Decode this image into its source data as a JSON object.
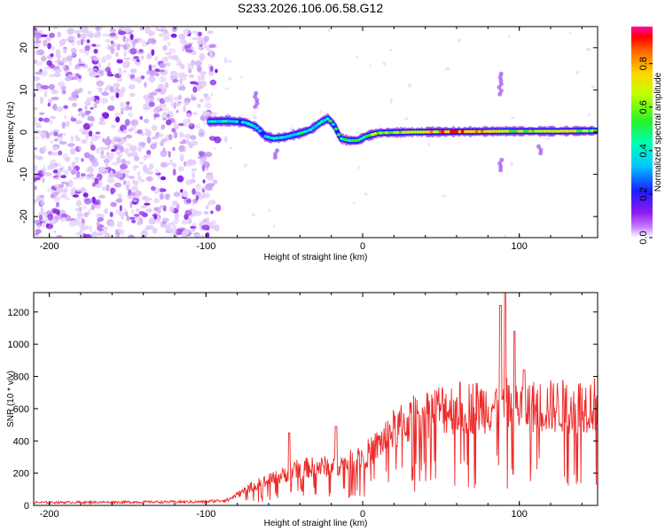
{
  "title": "S233.2026.106.06.58.G12",
  "chart_data": [
    {
      "type": "heatmap",
      "name": "spectrogram",
      "xlabel": "Height of straight line (km)",
      "ylabel": "Frequency (Hz)",
      "xlim": [
        -210,
        150
      ],
      "ylim": [
        -25,
        25
      ],
      "xticks": [
        -200,
        -100,
        0,
        100
      ],
      "yticks": [
        -20,
        -10,
        0,
        10,
        20
      ],
      "signal_ridge": [
        {
          "x": -98,
          "f": 2.5
        },
        {
          "x": -85,
          "f": 2.6
        },
        {
          "x": -75,
          "f": 2.3
        },
        {
          "x": -68,
          "f": 1.2
        },
        {
          "x": -62,
          "f": -1.0
        },
        {
          "x": -57,
          "f": -1.5
        },
        {
          "x": -50,
          "f": -1.2
        },
        {
          "x": -40,
          "f": -0.3
        },
        {
          "x": -33,
          "f": 0.6
        },
        {
          "x": -26,
          "f": 2.5
        },
        {
          "x": -22,
          "f": 3.2
        },
        {
          "x": -18,
          "f": 1.5
        },
        {
          "x": -14,
          "f": -1.5
        },
        {
          "x": -9,
          "f": -2.0
        },
        {
          "x": -3,
          "f": -2.0
        },
        {
          "x": 2,
          "f": -1.0
        },
        {
          "x": 10,
          "f": -0.2
        },
        {
          "x": 30,
          "f": 0.0
        },
        {
          "x": 60,
          "f": 0.1
        },
        {
          "x": 90,
          "f": 0.2
        },
        {
          "x": 120,
          "f": 0.2
        },
        {
          "x": 150,
          "f": 0.3
        }
      ],
      "signal_amplitude": [
        {
          "x": -98,
          "a": 0.45
        },
        {
          "x": -60,
          "a": 0.4
        },
        {
          "x": -20,
          "a": 0.5
        },
        {
          "x": 0,
          "a": 0.6
        },
        {
          "x": 30,
          "a": 0.78
        },
        {
          "x": 60,
          "a": 0.92
        },
        {
          "x": 80,
          "a": 0.85
        },
        {
          "x": 100,
          "a": 0.7
        },
        {
          "x": 130,
          "a": 0.75
        },
        {
          "x": 150,
          "a": 0.6
        }
      ],
      "noise_region": [
        -210,
        -95
      ]
    },
    {
      "type": "line",
      "name": "snr",
      "xlabel": "Height of straight line (km)",
      "ylabel": "SNR (10 * v/v)",
      "xlim": [
        -210,
        150
      ],
      "ylim": [
        0,
        1320
      ],
      "xticks": [
        -200,
        -100,
        0,
        100
      ],
      "yticks": [
        0,
        200,
        400,
        600,
        800,
        1000,
        1200
      ],
      "color": "#ee2a2a",
      "envelope": [
        {
          "x": -210,
          "y": 20
        },
        {
          "x": -100,
          "y": 25
        },
        {
          "x": -85,
          "y": 40
        },
        {
          "x": -70,
          "y": 120
        },
        {
          "x": -55,
          "y": 170
        },
        {
          "x": -40,
          "y": 230
        },
        {
          "x": -25,
          "y": 240
        },
        {
          "x": -10,
          "y": 260
        },
        {
          "x": 5,
          "y": 330
        },
        {
          "x": 20,
          "y": 470
        },
        {
          "x": 35,
          "y": 550
        },
        {
          "x": 50,
          "y": 600
        },
        {
          "x": 70,
          "y": 610
        },
        {
          "x": 90,
          "y": 620
        },
        {
          "x": 110,
          "y": 610
        },
        {
          "x": 130,
          "y": 615
        },
        {
          "x": 150,
          "y": 630
        }
      ],
      "peaks": [
        {
          "x": -47,
          "y": 450
        },
        {
          "x": -17,
          "y": 490
        },
        {
          "x": 88,
          "y": 1240
        },
        {
          "x": 91,
          "y": 1320
        },
        {
          "x": 97,
          "y": 1080
        },
        {
          "x": 103,
          "y": 840
        }
      ]
    }
  ],
  "colorbar": {
    "label": "Normalized spectral amplitude",
    "ticks": [
      "0.0",
      "0.2",
      "0.4",
      "0.6",
      "0.8"
    ]
  }
}
